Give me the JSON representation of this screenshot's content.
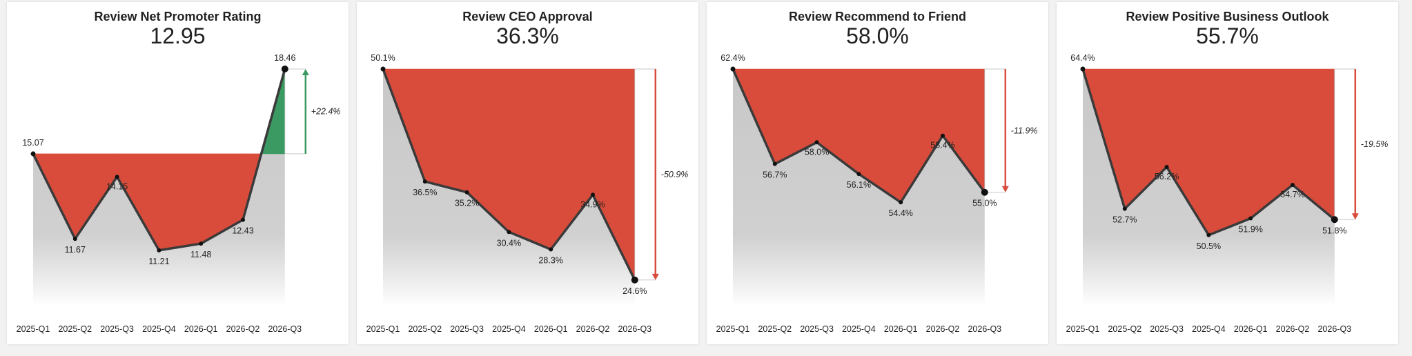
{
  "colors": {
    "decline": "#d94c3b",
    "gain": "#3a9a62",
    "line": "#3a3a3a",
    "baseline_fill_top": "#c8c8c8",
    "baseline_fill_bottom": "#ffffff"
  },
  "chart_data": [
    {
      "type": "line",
      "title": "Review Net Promoter Rating",
      "headline": "12.95",
      "categories": [
        "2025-Q1",
        "2025-Q2",
        "2025-Q3",
        "2025-Q4",
        "2026-Q1",
        "2026-Q2",
        "2026-Q3"
      ],
      "values": [
        15.07,
        11.67,
        14.15,
        11.21,
        11.48,
        12.43,
        18.46
      ],
      "value_labels": [
        "15.07",
        "11.67",
        "14.15",
        "11.21",
        "11.48",
        "12.43",
        "18.46"
      ],
      "change": "+22.4%",
      "direction": "up",
      "ylim": [
        9.0,
        18.46
      ]
    },
    {
      "type": "line",
      "title": "Review CEO Approval",
      "headline": "36.3%",
      "categories": [
        "2025-Q1",
        "2025-Q2",
        "2025-Q3",
        "2025-Q4",
        "2026-Q1",
        "2026-Q2",
        "2026-Q3"
      ],
      "values": [
        50.1,
        36.5,
        35.2,
        30.4,
        28.3,
        34.9,
        24.6
      ],
      "value_labels": [
        "50.1%",
        "36.5%",
        "35.2%",
        "30.4%",
        "28.3%",
        "34.9%",
        "24.6%"
      ],
      "change": "-50.9%",
      "direction": "down",
      "ylim": [
        21.5,
        50.1
      ]
    },
    {
      "type": "line",
      "title": "Review Recommend to Friend",
      "headline": "58.0%",
      "categories": [
        "2025-Q1",
        "2025-Q2",
        "2025-Q3",
        "2025-Q4",
        "2026-Q1",
        "2026-Q2",
        "2026-Q3"
      ],
      "values": [
        62.4,
        56.7,
        58.0,
        56.1,
        54.4,
        58.4,
        55.0
      ],
      "value_labels": [
        "62.4%",
        "56.7%",
        "58.0%",
        "56.1%",
        "54.4%",
        "58.4%",
        "55.0%"
      ],
      "change": "-11.9%",
      "direction": "down",
      "ylim": [
        48.2,
        62.4
      ]
    },
    {
      "type": "line",
      "title": "Review Positive Business Outlook",
      "headline": "55.7%",
      "categories": [
        "2025-Q1",
        "2025-Q2",
        "2025-Q3",
        "2025-Q4",
        "2026-Q1",
        "2026-Q2",
        "2026-Q3"
      ],
      "values": [
        64.4,
        52.7,
        56.2,
        50.5,
        51.9,
        54.7,
        51.8
      ],
      "value_labels": [
        "64.4%",
        "52.7%",
        "56.2%",
        "50.5%",
        "51.9%",
        "54.7%",
        "51.8%"
      ],
      "change": "-19.5%",
      "direction": "down",
      "ylim": [
        44.6,
        64.4
      ]
    }
  ]
}
